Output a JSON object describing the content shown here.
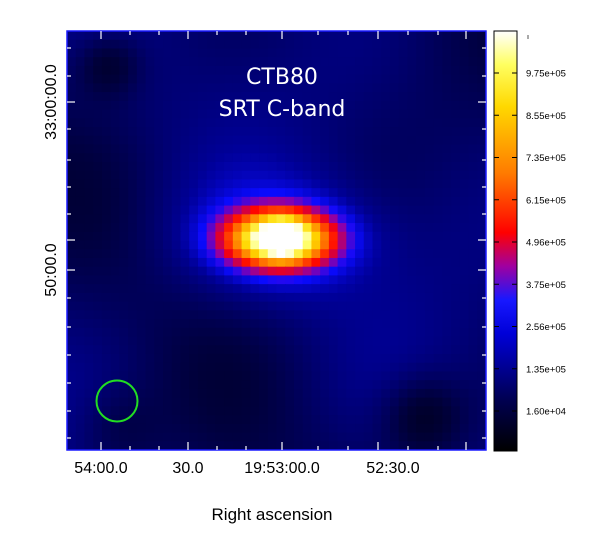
{
  "map": {
    "object_name": "CTB80",
    "instrument_band": "SRT C-band",
    "x_axis_label": "Right ascension",
    "x_tick_labels": [
      "54:00.0",
      "30.0",
      "19:53:00.0",
      "52:30.0"
    ],
    "y_tick_labels": [
      "33:00:00.0",
      "50:00.0"
    ],
    "beam_color": "#22dd22",
    "frame_color": "#1a1aff"
  },
  "colorbar": {
    "tick_labels": [
      "9.75e+05",
      "8.55e+05",
      "7.35e+05",
      "6.15e+05",
      "4.96e+05",
      "3.75e+05",
      "2.56e+05",
      "1.35e+05",
      "1.60e+04"
    ],
    "colormap": [
      "#000000",
      "#000070",
      "#0000ff",
      "#ff0000",
      "#ff8c00",
      "#ffff00",
      "#ffffff"
    ]
  }
}
